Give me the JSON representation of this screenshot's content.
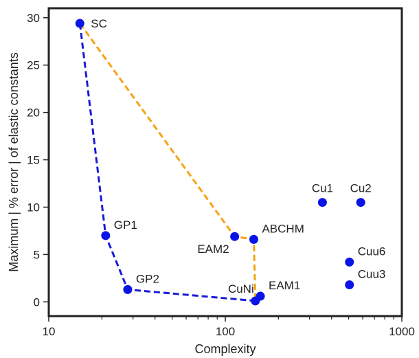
{
  "chart_data": {
    "type": "scatter",
    "xlabel": "Complexity",
    "ylabel": "Maximum | % error | of elastic constants",
    "xscale": "log",
    "xlim": [
      10,
      1000
    ],
    "ylim": [
      -1.5,
      31
    ],
    "xticks": [
      {
        "value": 10,
        "label": "10"
      },
      {
        "value": 100,
        "label": "100"
      },
      {
        "value": 1000,
        "label": "1000"
      }
    ],
    "yticks": [
      0,
      5,
      10,
      15,
      20,
      25,
      30
    ],
    "grid": false,
    "colors": {
      "points": "#0a14e6",
      "blue_front": "#1a1ad6",
      "orange_front": "#f5a314",
      "frame": "#222222"
    },
    "points": [
      {
        "label": "SC",
        "x": 15,
        "y": 29.4,
        "label_pos": "right"
      },
      {
        "label": "GP1",
        "x": 21,
        "y": 7.0,
        "label_pos": "upper-right"
      },
      {
        "label": "GP2",
        "x": 28,
        "y": 1.3,
        "label_pos": "upper-right"
      },
      {
        "label": "EAM2",
        "x": 113,
        "y": 6.9,
        "label_pos": "lower-left"
      },
      {
        "label": "ABCHM",
        "x": 145,
        "y": 6.6,
        "label_pos": "upper-right"
      },
      {
        "label": "CuNi",
        "x": 148,
        "y": 0.1,
        "label_pos": "upper-left"
      },
      {
        "label": "EAM1",
        "x": 158,
        "y": 0.6,
        "label_pos": "upper-right"
      },
      {
        "label": "Cu1",
        "x": 355,
        "y": 10.5,
        "label_pos": "above"
      },
      {
        "label": "Cu2",
        "x": 585,
        "y": 10.5,
        "label_pos": "above"
      },
      {
        "label": "Cuu6",
        "x": 505,
        "y": 4.2,
        "label_pos": "upper-right"
      },
      {
        "label": "Cuu3",
        "x": 505,
        "y": 1.8,
        "label_pos": "upper-right"
      }
    ],
    "series": [
      {
        "style": "dashed",
        "color": "#1a1ad6",
        "points": [
          "SC",
          "GP1",
          "GP2",
          "CuNi",
          "EAM1"
        ]
      },
      {
        "style": "dashed",
        "color": "#f5a314",
        "points": [
          "SC",
          "EAM2",
          "ABCHM",
          "CuNi"
        ]
      }
    ]
  }
}
